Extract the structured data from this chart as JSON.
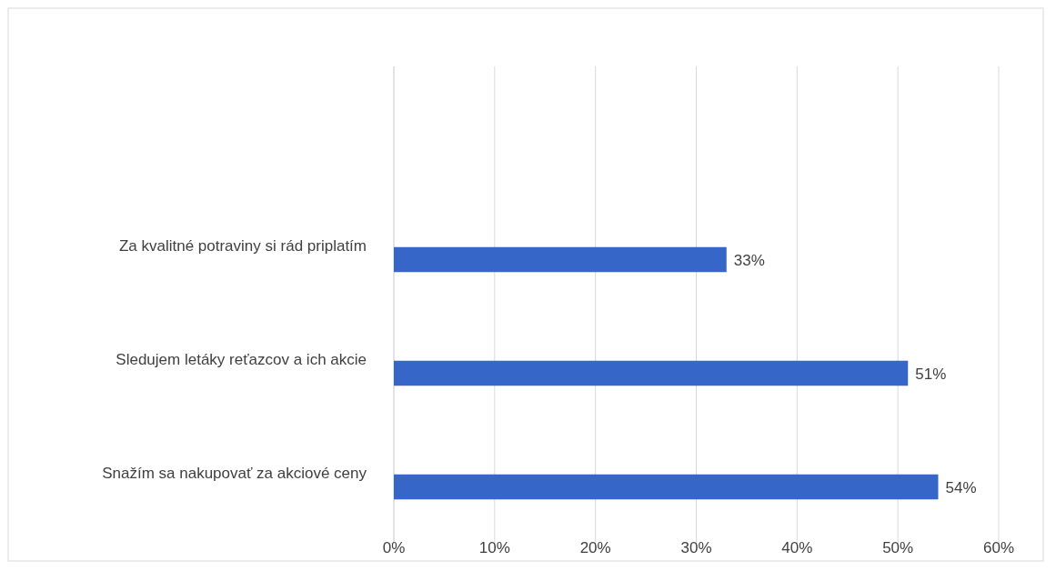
{
  "chart_data": {
    "type": "bar",
    "orientation": "horizontal",
    "categories": [
      "Za kvalitné potraviny si rád priplatím",
      "Sledujem letáky reťazcov a ich akcie",
      "Snažím sa nakupovať za akciové ceny"
    ],
    "values": [
      33,
      51,
      54
    ],
    "color": "#3566c8",
    "value_labels": [
      "33%",
      "51%",
      "54%"
    ],
    "xlim": [
      0,
      60
    ],
    "xticks": [
      {
        "value": 0,
        "label": "0%"
      },
      {
        "value": 10,
        "label": "10%"
      },
      {
        "value": 20,
        "label": "20%"
      },
      {
        "value": 30,
        "label": "30%"
      },
      {
        "value": 40,
        "label": "40%"
      },
      {
        "value": 50,
        "label": "50%"
      },
      {
        "value": 60,
        "label": "60%"
      }
    ],
    "grid": "x"
  }
}
